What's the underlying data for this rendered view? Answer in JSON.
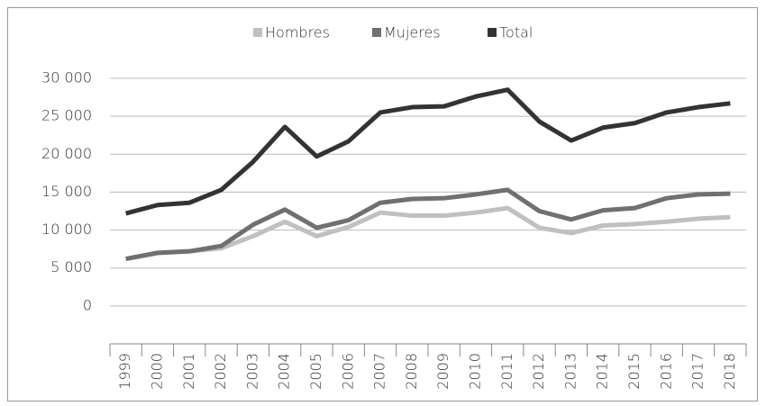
{
  "chart_data": {
    "type": "line",
    "categories": [
      "1999",
      "2000",
      "2001",
      "2002",
      "2003",
      "2004",
      "2005",
      "2006",
      "2007",
      "2008",
      "2009",
      "2010",
      "2011",
      "2012",
      "2013",
      "2014",
      "2015",
      "2016",
      "2017",
      "2018"
    ],
    "series": [
      {
        "name": "Hombres",
        "color": "#c0c0c0",
        "values": [
          6200,
          7000,
          7200,
          7600,
          9200,
          11100,
          9200,
          10400,
          12300,
          11900,
          11900,
          12300,
          12900,
          10300,
          9600,
          10600,
          10800,
          11100,
          11500,
          11700
        ]
      },
      {
        "name": "Mujeres",
        "color": "#707070",
        "values": [
          6200,
          7000,
          7200,
          7900,
          10700,
          12700,
          10300,
          11300,
          13600,
          14100,
          14200,
          14700,
          15300,
          12500,
          11400,
          12600,
          12900,
          14200,
          14700,
          14800
        ]
      },
      {
        "name": "Total",
        "color": "#333333",
        "values": [
          12200,
          13300,
          13600,
          15300,
          19000,
          23600,
          19700,
          21700,
          25500,
          26200,
          26300,
          27600,
          28500,
          24300,
          21800,
          23500,
          24100,
          25500,
          26200,
          26700
        ]
      }
    ],
    "ylim": [
      -5000,
      30000
    ],
    "yticks": [
      0,
      {
        "value": 5000,
        "label": "5 000"
      },
      {
        "value": 10000,
        "label": "10 000"
      },
      {
        "value": 15000,
        "label": "15 000"
      },
      {
        "value": 20000,
        "label": "20 000"
      },
      {
        "value": 25000,
        "label": "25 000"
      },
      {
        "value": 30000,
        "label": "30 000"
      }
    ],
    "grid": true,
    "legend": "top"
  }
}
